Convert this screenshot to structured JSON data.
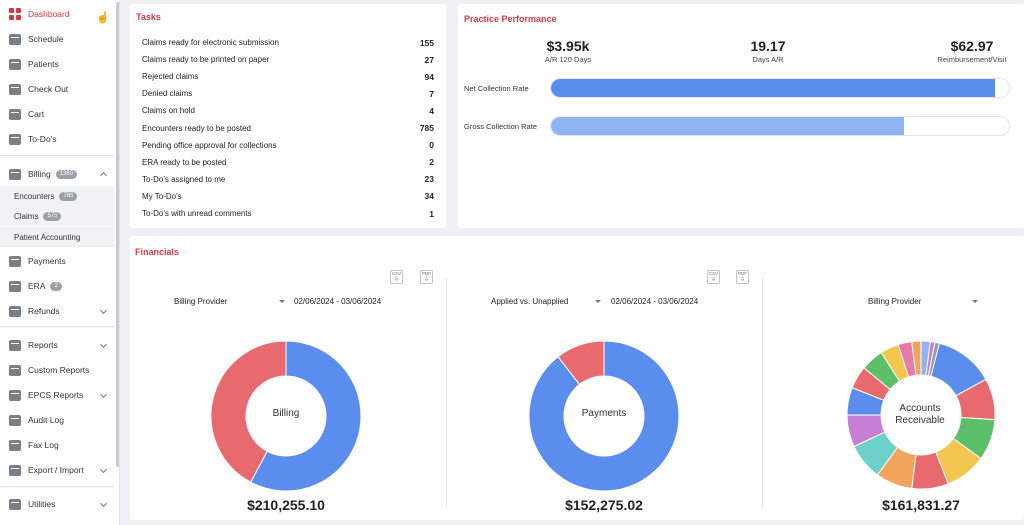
{
  "sidebar": {
    "items": [
      {
        "key": "dashboard",
        "label": "Dashboard",
        "icon": "dashboard-icon"
      },
      {
        "key": "schedule",
        "label": "Schedule",
        "icon": "calendar-icon"
      },
      {
        "key": "patients",
        "label": "Patients",
        "icon": "patient-icon"
      },
      {
        "key": "checkout",
        "label": "Check Out",
        "icon": "checkout-icon"
      },
      {
        "key": "cart",
        "label": "Cart",
        "icon": "cart-icon"
      },
      {
        "key": "todos",
        "label": "To-Do's",
        "icon": "checklist-icon"
      },
      {
        "key": "billing",
        "label": "Billing",
        "icon": "dollar-icon",
        "badge": "1360"
      },
      {
        "key": "payments",
        "label": "Payments",
        "icon": "wallet-icon"
      },
      {
        "key": "era",
        "label": "ERA",
        "icon": "transfer-icon",
        "badge": "2"
      },
      {
        "key": "refunds",
        "label": "Refunds",
        "icon": "refund-icon"
      },
      {
        "key": "reports",
        "label": "Reports",
        "icon": "chart-icon"
      },
      {
        "key": "custom_reports",
        "label": "Custom Reports",
        "icon": "custom-report-icon"
      },
      {
        "key": "epcs_reports",
        "label": "EPCS Reports",
        "icon": "epcs-icon"
      },
      {
        "key": "audit_log",
        "label": "Audit Log",
        "icon": "audit-icon"
      },
      {
        "key": "fax_log",
        "label": "Fax Log",
        "icon": "fax-icon"
      },
      {
        "key": "export_import",
        "label": "Export / Import",
        "icon": "export-icon"
      },
      {
        "key": "utilities",
        "label": "Utilities",
        "icon": "utilities-icon"
      }
    ],
    "billing_sub": [
      {
        "label": "Encounters",
        "badge": "785"
      },
      {
        "label": "Claims",
        "badge": "575"
      },
      {
        "label": "Patient Accounting",
        "badge": ""
      }
    ]
  },
  "tasks": {
    "title": "Tasks",
    "rows": [
      {
        "label": "Claims ready for electronic submission",
        "count": "155"
      },
      {
        "label": "Claims ready to be printed on paper",
        "count": "27"
      },
      {
        "label": "Rejected claims",
        "count": "94"
      },
      {
        "label": "Denied claims",
        "count": "7"
      },
      {
        "label": "Claims on hold",
        "count": "4"
      },
      {
        "label": "Encounters ready to be posted",
        "count": "785"
      },
      {
        "label": "Pending office approval for collections",
        "count": "0"
      },
      {
        "label": "ERA ready to be posted",
        "count": "2"
      },
      {
        "label": "To-Do's assigned to me",
        "count": "23"
      },
      {
        "label": "My To-Do's",
        "count": "34"
      },
      {
        "label": "To-Do's with unread comments",
        "count": "1"
      }
    ]
  },
  "performance": {
    "title": "Practice Performance",
    "kpis": [
      {
        "value": "$3.95k",
        "label": "A/R 120 Days"
      },
      {
        "value": "19.17",
        "label": "Days A/R"
      },
      {
        "value": "$62.97",
        "label": "Reimbursement/Visit"
      }
    ],
    "net_rate": {
      "label": "Net Collection Rate",
      "fraction": 0.97,
      "color": "#5b8def"
    },
    "gross_rate": {
      "label": "Gross Collection Rate",
      "fraction": 0.77,
      "color": "#8fb4f4"
    }
  },
  "financials": {
    "title": "Financials",
    "csv": "CSV",
    "pdf": "PDF",
    "panels": [
      {
        "selector": "Billing Provider",
        "date_range": "02/06/2024 - 03/06/2024",
        "center": "Billing",
        "total": "$210,255.10",
        "slices": [
          {
            "fraction": 0.578,
            "color": "#5b8def"
          },
          {
            "fraction": 0.422,
            "color": "#e86a6f"
          }
        ]
      },
      {
        "selector": "Applied vs. Unapplied",
        "date_range": "02/06/2024 - 03/06/2024",
        "center": "Payments",
        "total": "$152,275.02",
        "slices": [
          {
            "fraction": 0.895,
            "color": "#5b8def"
          },
          {
            "fraction": 0.105,
            "color": "#e86a6f"
          }
        ]
      },
      {
        "selector": "Billing Provider",
        "date_range": "",
        "center_line1": "Accounts",
        "center_line2": "Receivable",
        "total": "$161,831.27",
        "slices": [
          {
            "fraction": 0.17,
            "color": "#5b8def"
          },
          {
            "fraction": 0.09,
            "color": "#e86a6f"
          },
          {
            "fraction": 0.09,
            "color": "#5cbf6a"
          },
          {
            "fraction": 0.09,
            "color": "#f3c64f"
          },
          {
            "fraction": 0.08,
            "color": "#e86a6f"
          },
          {
            "fraction": 0.08,
            "color": "#f2a45c"
          },
          {
            "fraction": 0.08,
            "color": "#6fcfc9"
          },
          {
            "fraction": 0.07,
            "color": "#c77fd6"
          },
          {
            "fraction": 0.06,
            "color": "#5b8def"
          },
          {
            "fraction": 0.05,
            "color": "#e86a6f"
          },
          {
            "fraction": 0.05,
            "color": "#5cbf6a"
          },
          {
            "fraction": 0.04,
            "color": "#f3c64f"
          },
          {
            "fraction": 0.03,
            "color": "#e87aa8"
          },
          {
            "fraction": 0.02,
            "color": "#f2a45c"
          },
          {
            "fraction": 0.02,
            "color": "#8fb4f4"
          },
          {
            "fraction": 0.01,
            "color": "#c77fd6"
          },
          {
            "fraction": 0.01,
            "color": "#9aa0a8"
          }
        ]
      }
    ]
  }
}
